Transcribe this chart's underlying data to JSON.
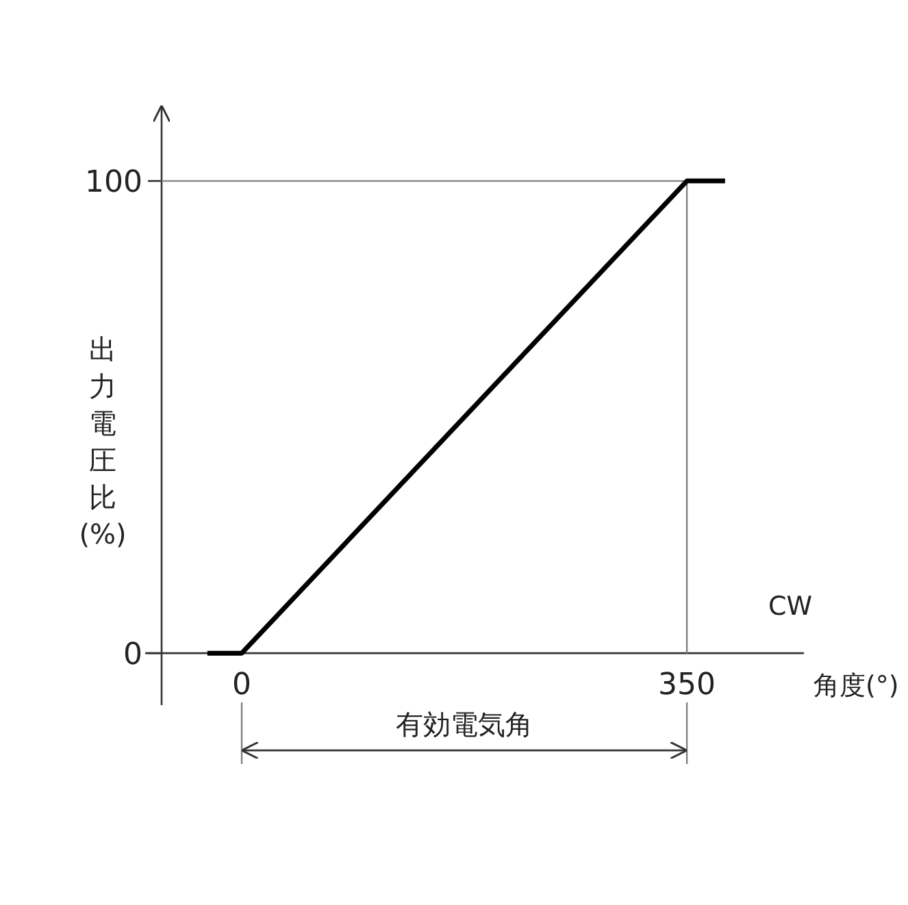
{
  "chart_data": {
    "type": "line",
    "x": [
      -27,
      0,
      350,
      380
    ],
    "values": [
      0,
      0,
      100,
      100
    ],
    "color": "#000000",
    "xlim": [
      -63,
      442
    ],
    "ylim": [
      -11,
      116
    ],
    "xticks": [
      0,
      350
    ],
    "yticks": [
      0,
      100
    ],
    "xlabel": "角度(°)",
    "ylabel": "出力電圧比(%)",
    "annotations": [
      "CW",
      "有効電気角"
    ],
    "ref_lines": [
      {
        "axis": "y",
        "value": 100,
        "color": "#808080"
      },
      {
        "axis": "x",
        "value": 350,
        "color": "#808080"
      }
    ],
    "marker": "none"
  }
}
